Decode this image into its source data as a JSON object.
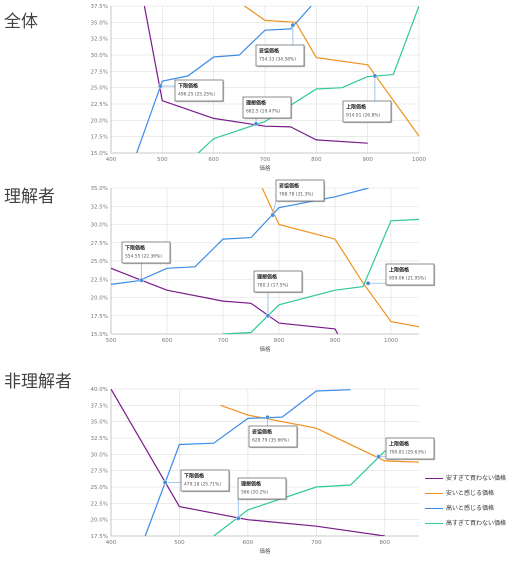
{
  "colors": {
    "too_cheap": "#7a1a8a",
    "cheap": "#f0911e",
    "expensive": "#3c8ce6",
    "too_expensive": "#2ec89a",
    "grid": "#dddddd",
    "axis_text": "#777777"
  },
  "legend": {
    "items": [
      {
        "label": "安すぎて買わない価格",
        "color": "#7a1a8a"
      },
      {
        "label": "安いと感じる価格",
        "color": "#f0911e"
      },
      {
        "label": "高いと感じる価格",
        "color": "#3c8ce6"
      },
      {
        "label": "高すぎて買わない価格",
        "color": "#2ec89a"
      }
    ]
  },
  "chart_data": [
    {
      "type": "line",
      "section_label": "全体",
      "xlabel": "価格",
      "xlim": [
        400,
        1000
      ],
      "ylim": [
        15,
        37.5
      ],
      "x_ticks": [
        "400",
        "500",
        "600",
        "700",
        "800",
        "900",
        "1000"
      ],
      "y_ticks": [
        "15.0%",
        "17.5%",
        "20.0%",
        "22.5%",
        "25.0%",
        "27.5%",
        "30.0%",
        "32.5%",
        "35.0%",
        "37.5%"
      ],
      "series": [
        {
          "name": "安すぎて買わない価格",
          "x": [
            465,
            500,
            600,
            700,
            750,
            800,
            900
          ],
          "y": [
            37.5,
            23.0,
            20.3,
            19.1,
            19.0,
            17.0,
            16.5
          ]
        },
        {
          "name": "安いと感じる価格",
          "x": [
            660,
            700,
            760,
            800,
            900,
            1000
          ],
          "y": [
            37.5,
            35.3,
            35.0,
            29.6,
            28.5,
            17.6
          ]
        },
        {
          "name": "高いと感じる価格",
          "x": [
            450,
            500,
            550,
            600,
            650,
            700,
            750,
            790
          ],
          "y": [
            15.0,
            26.0,
            26.8,
            29.7,
            30.0,
            33.8,
            34.0,
            37.5
          ]
        },
        {
          "name": "高すぎて買わない価格",
          "x": [
            570,
            600,
            700,
            800,
            850,
            900,
            950,
            1000
          ],
          "y": [
            15.0,
            17.2,
            19.8,
            24.8,
            25.0,
            26.7,
            27.0,
            37.5
          ]
        }
      ],
      "annotations": [
        {
          "title": "下限価格",
          "detail": "496.25 (25.25%)",
          "x": 496.25,
          "y": 25.25
        },
        {
          "title": "理想価格",
          "detail": "682.5 (19.47%)",
          "x": 682.5,
          "y": 19.47
        },
        {
          "title": "妥協価格",
          "detail": "754.33 (34.58%)",
          "x": 754.33,
          "y": 34.58
        },
        {
          "title": "上限価格",
          "detail": "914.01 (26.8%)",
          "x": 914.01,
          "y": 26.8
        }
      ]
    },
    {
      "type": "line",
      "section_label": "理解者",
      "xlabel": "価格",
      "xlim": [
        500,
        1050
      ],
      "ylim": [
        15,
        35
      ],
      "x_ticks": [
        "500",
        "600",
        "700",
        "800",
        "900",
        "1000"
      ],
      "y_ticks": [
        "15.0%",
        "17.5%",
        "20.0%",
        "22.5%",
        "25.0%",
        "27.5%",
        "30.0%",
        "32.5%",
        "35.0%"
      ],
      "series": [
        {
          "name": "安すぎて買わない価格",
          "x": [
            500,
            550,
            600,
            700,
            750,
            800,
            900,
            905
          ],
          "y": [
            24.0,
            22.5,
            21.0,
            19.5,
            19.2,
            16.5,
            15.7,
            15.0
          ]
        },
        {
          "name": "安いと感じる価格",
          "x": [
            770,
            800,
            900,
            950,
            1000,
            1050
          ],
          "y": [
            35.0,
            30.0,
            28.0,
            22.0,
            16.7,
            16.0
          ]
        },
        {
          "name": "高いと感じる価格",
          "x": [
            500,
            550,
            600,
            650,
            700,
            750,
            800,
            900,
            960
          ],
          "y": [
            21.8,
            22.3,
            24.0,
            24.2,
            28.0,
            28.2,
            32.3,
            33.8,
            35.0
          ]
        },
        {
          "name": "高すぎて買わない価格",
          "x": [
            700,
            750,
            780,
            800,
            900,
            950,
            1000,
            1050
          ],
          "y": [
            15.0,
            15.2,
            17.5,
            19.0,
            21.0,
            21.5,
            30.5,
            30.7
          ]
        }
      ],
      "annotations": [
        {
          "title": "下限価格",
          "detail": "554.55 (22.36%)",
          "x": 554.55,
          "y": 22.36
        },
        {
          "title": "理想価格",
          "detail": "780.3 (17.5%)",
          "x": 780.3,
          "y": 17.5
        },
        {
          "title": "妥協価格",
          "detail": "788.78 (31.3%)",
          "x": 788.78,
          "y": 31.3
        },
        {
          "title": "上限価格",
          "detail": "959.06 (21.95%)",
          "x": 959.06,
          "y": 21.95
        }
      ]
    },
    {
      "type": "line",
      "section_label": "非理解者",
      "xlabel": "価格",
      "xlim": [
        400,
        850
      ],
      "ylim": [
        17.5,
        40
      ],
      "x_ticks": [
        "400",
        "500",
        "600",
        "700",
        "800"
      ],
      "y_ticks": [
        "17.5%",
        "20.0%",
        "22.5%",
        "25.0%",
        "27.5%",
        "30.0%",
        "32.5%",
        "35.0%",
        "37.5%",
        "40.0%"
      ],
      "series": [
        {
          "name": "安すぎて買わない価格",
          "x": [
            400,
            500,
            600,
            700,
            800
          ],
          "y": [
            40.0,
            22.0,
            20.0,
            19.0,
            17.5
          ]
        },
        {
          "name": "安いと感じる価格",
          "x": [
            560,
            600,
            700,
            800,
            850
          ],
          "y": [
            37.5,
            36.0,
            34.0,
            29.0,
            28.8
          ]
        },
        {
          "name": "高いと感じる価格",
          "x": [
            450,
            500,
            550,
            600,
            650,
            700,
            750
          ],
          "y": [
            17.5,
            31.5,
            31.7,
            35.5,
            35.7,
            39.7,
            39.9
          ]
        },
        {
          "name": "高すぎて買わない価格",
          "x": [
            550,
            600,
            700,
            750,
            800,
            850
          ],
          "y": [
            17.5,
            21.5,
            25.0,
            25.3,
            30.5,
            30.7
          ]
        }
      ],
      "annotations": [
        {
          "title": "下限価格",
          "detail": "479.18 (25.71%)",
          "x": 479.18,
          "y": 25.71
        },
        {
          "title": "理想価格",
          "detail": "586 (20.2%)",
          "x": 586,
          "y": 20.2
        },
        {
          "title": "妥協価格",
          "detail": "628.79 (35.66%)",
          "x": 628.79,
          "y": 35.66
        },
        {
          "title": "上限価格",
          "detail": "790.81 (29.63%)",
          "x": 790.81,
          "y": 29.63
        }
      ]
    }
  ]
}
